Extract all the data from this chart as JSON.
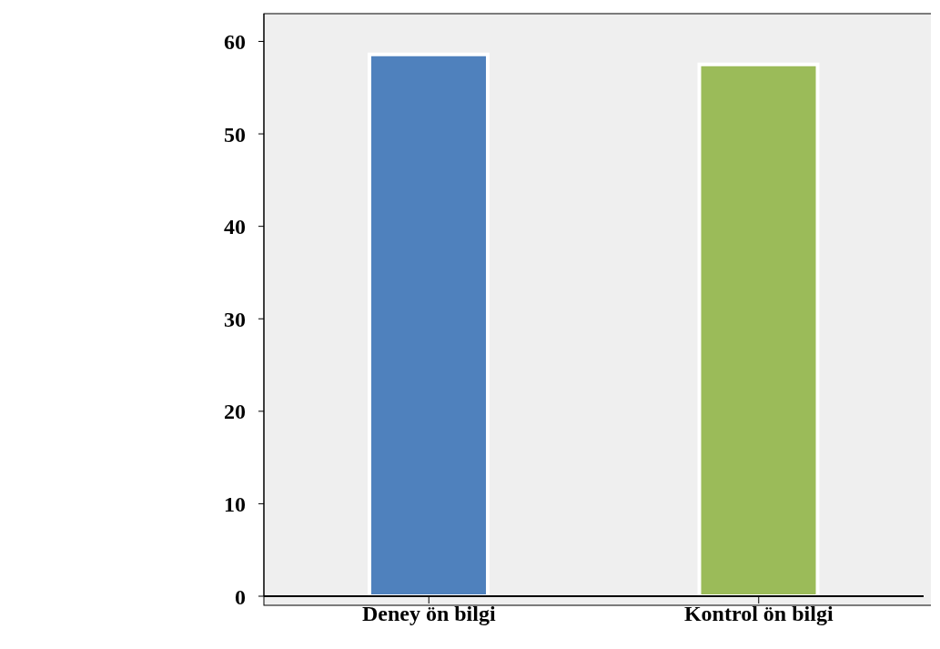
{
  "chart_data": {
    "type": "bar",
    "categories": [
      "Deney ön bilgi",
      "Kontrol ön bilgi"
    ],
    "values": [
      58.6,
      57.5
    ],
    "colors": [
      "#4f81bd",
      "#9bbb59"
    ],
    "ylim": [
      0,
      63
    ],
    "yticks": [
      0,
      10,
      20,
      30,
      40,
      50,
      60
    ],
    "grid": false,
    "legend": false
  }
}
